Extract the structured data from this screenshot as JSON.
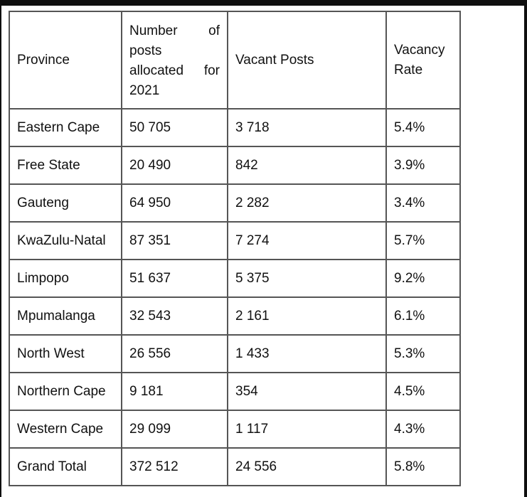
{
  "table": {
    "headers": {
      "province": "Province",
      "posts_line1a": "Number",
      "posts_line1b": "of",
      "posts_line2": "posts",
      "posts_line3a": "allocated",
      "posts_line3b": "for",
      "posts_line4": "2021",
      "vacant": "Vacant Posts",
      "rate_line1": "Vacancy",
      "rate_line2": "Rate"
    },
    "rows": [
      {
        "province": "Eastern Cape",
        "posts": "50 705",
        "vacant": "3 718",
        "rate": "5.4%"
      },
      {
        "province": "Free State",
        "posts": "20 490",
        "vacant": "842",
        "rate": "3.9%"
      },
      {
        "province": "Gauteng",
        "posts": "64 950",
        "vacant": "2 282",
        "rate": "3.4%"
      },
      {
        "province": "KwaZulu-Natal",
        "posts": "87 351",
        "vacant": "7 274",
        "rate": "5.7%"
      },
      {
        "province": "Limpopo",
        "posts": "51 637",
        "vacant": "5 375",
        "rate": "9.2%"
      },
      {
        "province": "Mpumalanga",
        "posts": "32 543",
        "vacant": "2 161",
        "rate": "6.1%"
      },
      {
        "province": "North West",
        "posts": "26 556",
        "vacant": "1 433",
        "rate": "5.3%"
      },
      {
        "province": "Northern Cape",
        "posts": "9 181",
        "vacant": "354",
        "rate": "4.5%"
      },
      {
        "province": "Western Cape",
        "posts": "29 099",
        "vacant": "1 117",
        "rate": "4.3%"
      }
    ],
    "total": {
      "province": "Grand Total",
      "posts": "372 512",
      "vacant": "24 556",
      "rate": "5.8%"
    }
  }
}
